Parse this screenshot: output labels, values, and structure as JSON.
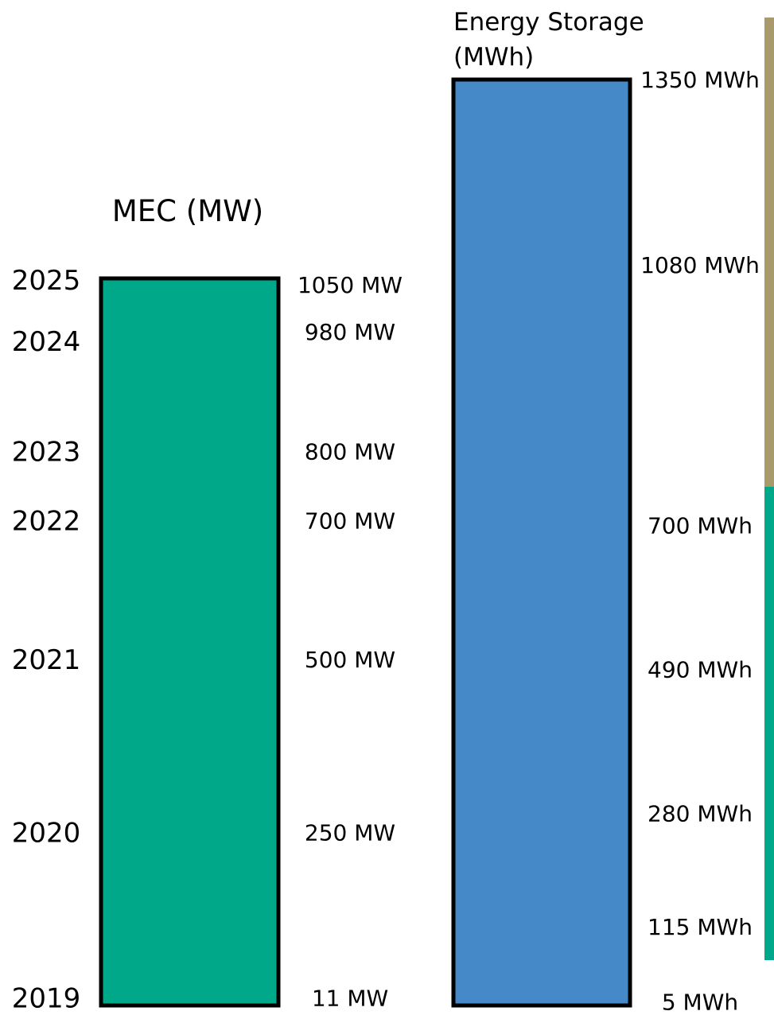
{
  "chart_data": [
    {
      "type": "bar",
      "title": "MEC (MW)",
      "xlabel": "",
      "ylabel": "",
      "ylim": [
        0,
        1050
      ],
      "bar_color": "#00A88A",
      "categories": [
        "2019",
        "2020",
        "2021",
        "2022",
        "2023",
        "2024",
        "2025"
      ],
      "values": [
        11,
        250,
        500,
        700,
        800,
        980,
        1050
      ],
      "value_labels": [
        "11 MW",
        "250 MW",
        "500 MW",
        "700 MW",
        "800 MW",
        "980 MW",
        "1050 MW"
      ]
    },
    {
      "type": "bar",
      "title_lines": [
        "Energy Storage",
        "(MWh)"
      ],
      "xlabel": "",
      "ylabel": "",
      "ylim": [
        0,
        1350
      ],
      "bar_color": "#4589C8",
      "values": [
        5,
        115,
        280,
        490,
        700,
        1080,
        1350
      ],
      "value_labels": [
        "5 MWh",
        "115 MWh",
        "280 MWh",
        "490 MWh",
        "700 MWh",
        "1080 MWh",
        "1350 MWh"
      ]
    }
  ],
  "side_band": {
    "top_color": "#A89A6A",
    "bottom_color": "#00A88A"
  }
}
